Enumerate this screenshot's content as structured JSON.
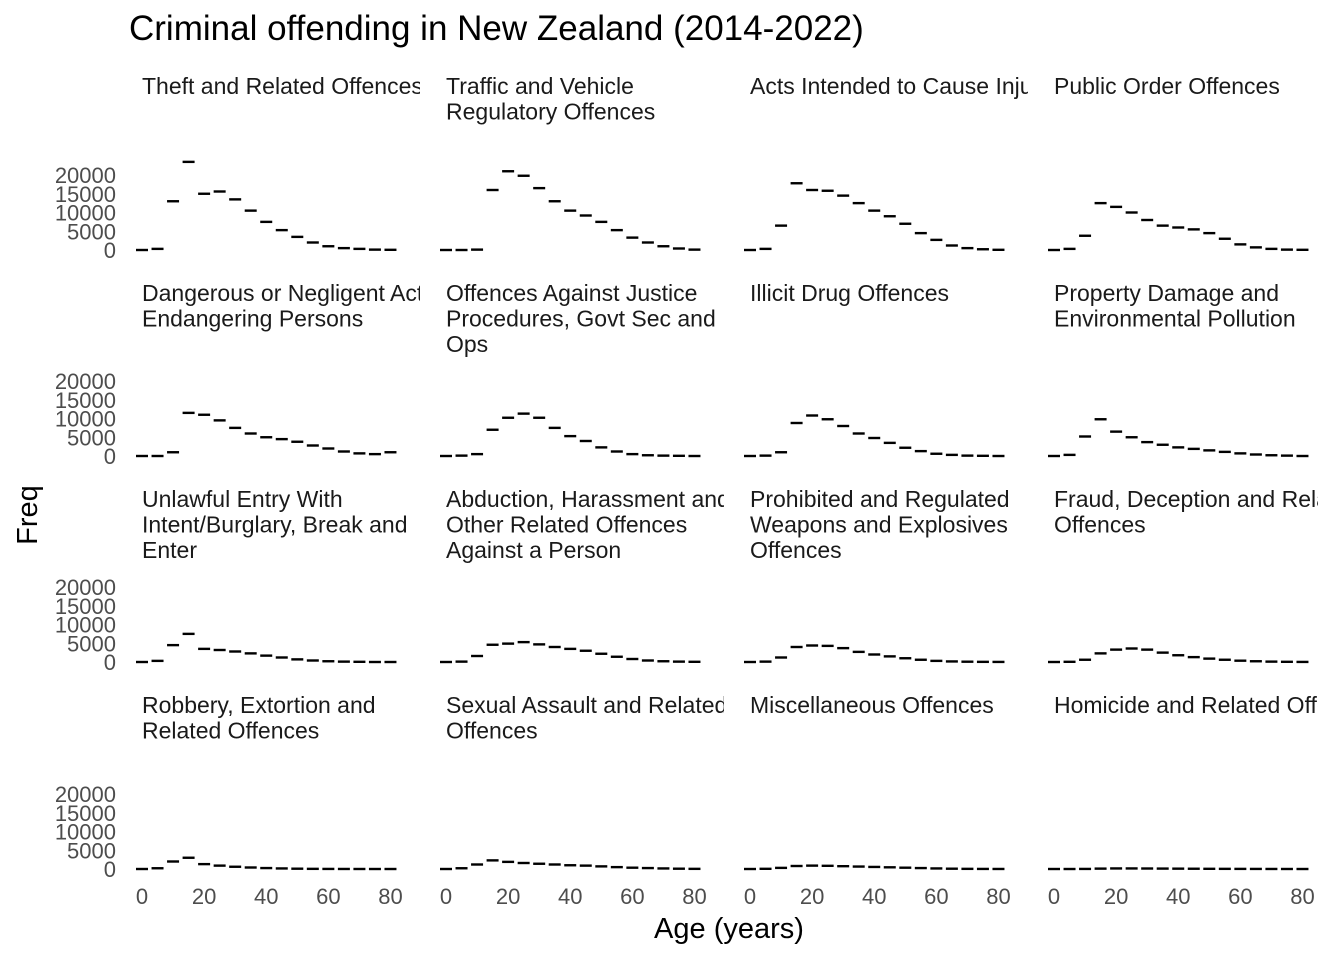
{
  "chart_data": {
    "type": "step-dash",
    "title": "Criminal offending in New Zealand (2014-2022)",
    "xlabel": "Age (years)",
    "ylabel": "Freq",
    "xlim": [
      0,
      85
    ],
    "ylim": [
      0,
      24000
    ],
    "x_ticks": [
      "0",
      "20",
      "40",
      "60",
      "80"
    ],
    "y_ticks": [
      "0",
      "5000",
      "10000",
      "15000",
      "20000"
    ],
    "grid": false,
    "legend": "none",
    "ages": [
      0,
      5,
      10,
      15,
      20,
      25,
      30,
      35,
      40,
      45,
      50,
      55,
      60,
      65,
      70,
      75,
      80
    ],
    "panels": [
      {
        "strip": [
          "Theft and Related Offences"
        ],
        "values": [
          0,
          300,
          13000,
          23500,
          15000,
          15600,
          13500,
          10500,
          7500,
          5300,
          3500,
          2000,
          1000,
          500,
          300,
          100,
          50
        ]
      },
      {
        "strip": [
          "Traffic and Vehicle",
          "Regulatory Offences"
        ],
        "values": [
          0,
          0,
          100,
          16000,
          21000,
          19800,
          16500,
          13000,
          10500,
          9200,
          7500,
          5300,
          3300,
          2000,
          1000,
          400,
          100
        ]
      },
      {
        "strip": [
          "Acts Intended to Cause Injury"
        ],
        "values": [
          0,
          300,
          6500,
          17800,
          16000,
          15800,
          14500,
          12500,
          10500,
          9000,
          7000,
          4500,
          2700,
          1200,
          500,
          200,
          50
        ]
      },
      {
        "strip": [
          "Public Order Offences"
        ],
        "values": [
          0,
          300,
          3800,
          12500,
          11500,
          10000,
          8000,
          6500,
          6000,
          5500,
          4500,
          3000,
          1500,
          700,
          300,
          100,
          50
        ]
      },
      {
        "strip": [
          "Dangerous or Negligent Acts",
          "Endangering Persons"
        ],
        "values": [
          0,
          0,
          1000,
          11500,
          11000,
          9500,
          7500,
          6000,
          5000,
          4500,
          3800,
          2800,
          2000,
          1200,
          700,
          500,
          1000
        ]
      },
      {
        "strip": [
          "Offences Against Justice",
          "Procedures, Govt Sec and",
          "Ops"
        ],
        "values": [
          0,
          100,
          500,
          7000,
          10200,
          11300,
          10200,
          7500,
          5300,
          4000,
          2300,
          1200,
          500,
          200,
          100,
          50,
          0
        ]
      },
      {
        "strip": [
          "Illicit Drug Offences"
        ],
        "values": [
          0,
          100,
          1000,
          8800,
          10800,
          9800,
          8000,
          6000,
          4800,
          3500,
          2200,
          1300,
          600,
          300,
          100,
          50,
          0
        ]
      },
      {
        "strip": [
          "Property Damage and",
          "Environmental Pollution"
        ],
        "values": [
          0,
          300,
          5200,
          9800,
          6500,
          5000,
          3700,
          3000,
          2300,
          1900,
          1500,
          1100,
          700,
          400,
          200,
          100,
          0
        ]
      },
      {
        "strip": [
          "Unlawful Entry With",
          "Intent/Burglary, Break and",
          "Enter"
        ],
        "values": [
          0,
          300,
          4500,
          7500,
          3500,
          3200,
          2800,
          2300,
          1700,
          1200,
          700,
          400,
          200,
          100,
          50,
          0,
          0
        ]
      },
      {
        "strip": [
          "Abduction, Harassment and",
          "Other Related Offences",
          "Against a Person"
        ],
        "values": [
          0,
          100,
          1600,
          4600,
          4900,
          5300,
          4700,
          4000,
          3500,
          3000,
          2200,
          1400,
          800,
          400,
          200,
          100,
          50
        ]
      },
      {
        "strip": [
          "Prohibited and Regulated",
          "Weapons and Explosives",
          "Offences"
        ],
        "values": [
          0,
          100,
          1200,
          4000,
          4400,
          4300,
          3700,
          2700,
          2000,
          1500,
          1000,
          600,
          300,
          150,
          80,
          40,
          20
        ]
      },
      {
        "strip": [
          "Fraud, Deception and Related",
          "Offences"
        ],
        "values": [
          0,
          50,
          600,
          2300,
          3300,
          3600,
          3300,
          2500,
          1800,
          1300,
          900,
          600,
          350,
          200,
          100,
          50,
          20
        ]
      },
      {
        "strip": [
          "Robbery, Extortion and",
          "Related Offences"
        ],
        "values": [
          0,
          200,
          2000,
          3000,
          1300,
          900,
          600,
          400,
          250,
          150,
          80,
          40,
          20,
          10,
          5,
          0,
          0
        ]
      },
      {
        "strip": [
          "Sexual Assault and Related",
          "Offences"
        ],
        "values": [
          0,
          200,
          1200,
          2300,
          1900,
          1600,
          1400,
          1200,
          1000,
          900,
          700,
          500,
          350,
          250,
          150,
          80,
          40
        ]
      },
      {
        "strip": [
          "Miscellaneous Offences"
        ],
        "values": [
          0,
          50,
          300,
          800,
          900,
          850,
          750,
          650,
          550,
          450,
          350,
          250,
          150,
          80,
          40,
          20,
          10
        ]
      },
      {
        "strip": [
          "Homicide and Related Offences"
        ],
        "values": [
          0,
          0,
          20,
          100,
          150,
          150,
          130,
          110,
          90,
          70,
          50,
          40,
          30,
          20,
          10,
          5,
          0
        ]
      }
    ]
  }
}
